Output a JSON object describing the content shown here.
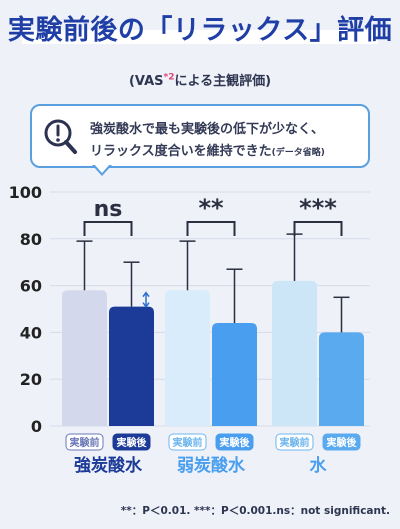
{
  "header": {
    "title": "実験前後の「リラックス」評価",
    "subtitle_prefix": "(VAS",
    "subtitle_sup": "*2",
    "subtitle_suffix": "による主観評価)"
  },
  "callout": {
    "line1": "強炭酸水で最も実験後の低下が少なく、",
    "line2": "リラックス度合いを維持できた",
    "note": "(データ省略)",
    "icon": "magnifier-exclamation-icon"
  },
  "colors": {
    "title": "#1f3fa6",
    "accent": "#5aa0e0",
    "strong_before": "#d3d8ec",
    "strong_after": "#1c3a98",
    "weak_before": "#d9ecfb",
    "weak_after": "#4a9ef0",
    "water_before": "#cde6f7",
    "water_after": "#5aaaf0"
  },
  "chart_data": {
    "type": "bar",
    "categories": [
      "強炭酸水",
      "弱炭酸水",
      "水"
    ],
    "bar_labels": [
      "実験前",
      "実験後"
    ],
    "series": [
      {
        "name": "実験前",
        "values": [
          58,
          58,
          62
        ],
        "error": [
          79,
          79,
          82
        ]
      },
      {
        "name": "実験後",
        "values": [
          51,
          44,
          40
        ],
        "error": [
          70,
          67,
          55
        ]
      }
    ],
    "significance": [
      "ns",
      "**",
      "***"
    ],
    "y_ticks": [
      0,
      20,
      40,
      60,
      80,
      100
    ],
    "ylim": [
      0,
      100
    ],
    "grid": true,
    "title": "",
    "xlabel": "",
    "ylabel": ""
  },
  "footnote": "**：P＜0.01. ***：P＜0.001.ns：not significant."
}
